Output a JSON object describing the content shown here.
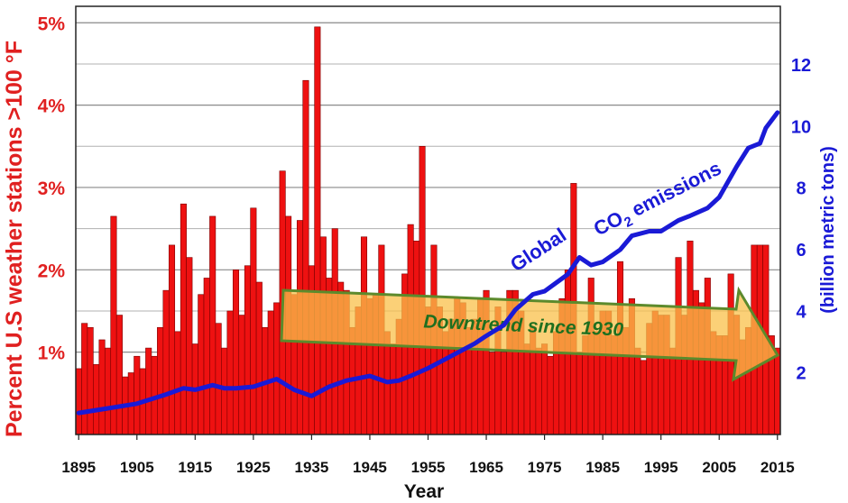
{
  "chart_data": {
    "type": "bar",
    "title": "",
    "xlabel": "Year",
    "ylabel_left": "Percent U.S weather stations >100 °F",
    "ylabel_right": "(billion metric tons)",
    "x_ticks": [
      "1895",
      "1905",
      "1915",
      "1925",
      "1935",
      "1945",
      "1955",
      "1965",
      "1975",
      "1985",
      "1995",
      "2005",
      "2015"
    ],
    "y_left_ticks": [
      "1%",
      "2%",
      "3%",
      "4%",
      "5%"
    ],
    "y_right_ticks": [
      "2",
      "4",
      "6",
      "8",
      "10",
      "12"
    ],
    "xlim": [
      1894.5,
      2015.5
    ],
    "ylim_left": [
      0,
      5.2
    ],
    "ylim_right": [
      0,
      13.9
    ],
    "grid": "horizontal",
    "colors": {
      "bars": "#ee1111",
      "bar_edge": "#7a0000",
      "co2_line": "#1a1ad6",
      "arrow_fill": "#f9c04a",
      "arrow_edge": "#5c8a2c",
      "arrow_text": "#1f6f1f"
    },
    "series": [
      {
        "name": "Percent U.S weather stations >100 °F",
        "axis": "left",
        "x": [
          1895,
          1896,
          1897,
          1898,
          1899,
          1900,
          1901,
          1902,
          1903,
          1904,
          1905,
          1906,
          1907,
          1908,
          1909,
          1910,
          1911,
          1912,
          1913,
          1914,
          1915,
          1916,
          1917,
          1918,
          1919,
          1920,
          1921,
          1922,
          1923,
          1924,
          1925,
          1926,
          1927,
          1928,
          1929,
          1930,
          1931,
          1932,
          1933,
          1934,
          1935,
          1936,
          1937,
          1938,
          1939,
          1940,
          1941,
          1942,
          1943,
          1944,
          1945,
          1946,
          1947,
          1948,
          1949,
          1950,
          1951,
          1952,
          1953,
          1954,
          1955,
          1956,
          1957,
          1958,
          1959,
          1960,
          1961,
          1962,
          1963,
          1964,
          1965,
          1966,
          1967,
          1968,
          1969,
          1970,
          1971,
          1972,
          1973,
          1974,
          1975,
          1976,
          1977,
          1978,
          1979,
          1980,
          1981,
          1982,
          1983,
          1984,
          1985,
          1986,
          1987,
          1988,
          1989,
          1990,
          1991,
          1992,
          1993,
          1994,
          1995,
          1996,
          1997,
          1998,
          1999,
          2000,
          2001,
          2002,
          2003,
          2004,
          2005,
          2006,
          2007,
          2008,
          2009,
          2010,
          2011,
          2012,
          2013,
          2014,
          2015
        ],
        "values": [
          0.8,
          1.35,
          1.3,
          0.85,
          1.15,
          1.05,
          2.65,
          1.45,
          0.7,
          0.75,
          0.95,
          0.8,
          1.05,
          0.95,
          1.3,
          1.75,
          2.3,
          1.25,
          2.8,
          2.15,
          1.1,
          1.7,
          1.9,
          2.65,
          1.35,
          1.05,
          1.5,
          2.0,
          1.45,
          2.05,
          2.75,
          1.85,
          1.3,
          1.5,
          1.6,
          3.2,
          2.65,
          1.7,
          2.6,
          4.3,
          2.05,
          4.95,
          2.4,
          1.9,
          2.5,
          1.85,
          1.75,
          1.3,
          1.55,
          2.4,
          1.65,
          1.7,
          2.3,
          1.25,
          1.1,
          1.4,
          1.95,
          2.55,
          2.35,
          3.5,
          1.55,
          2.3,
          1.55,
          1.25,
          1.4,
          1.65,
          1.6,
          1.3,
          1.4,
          1.65,
          1.75,
          1.0,
          1.55,
          1.0,
          1.75,
          1.75,
          1.5,
          1.1,
          1.3,
          1.05,
          1.1,
          0.95,
          1.25,
          1.65,
          2.0,
          3.05,
          1.0,
          1.2,
          1.9,
          1.25,
          1.5,
          1.5,
          1.2,
          2.1,
          1.3,
          1.65,
          1.05,
          0.9,
          1.35,
          1.5,
          1.45,
          1.45,
          1.05,
          2.15,
          1.45,
          2.35,
          1.75,
          1.6,
          1.9,
          1.25,
          1.2,
          1.2,
          1.95,
          1.45,
          1.15,
          1.3,
          2.3,
          2.3,
          2.3,
          1.2,
          1.05
        ]
      },
      {
        "name": "Global CO2 emissions",
        "axis": "right",
        "x": [
          1895,
          1900,
          1905,
          1910,
          1913,
          1915,
          1918,
          1920,
          1922,
          1925,
          1929,
          1932,
          1935,
          1938,
          1941,
          1945,
          1948,
          1950,
          1952,
          1955,
          1958,
          1960,
          1963,
          1965,
          1968,
          1970,
          1973,
          1975,
          1979,
          1981,
          1983,
          1985,
          1988,
          1990,
          1993,
          1995,
          1998,
          2000,
          2003,
          2005,
          2008,
          2010,
          2012,
          2013,
          2015
        ],
        "values": [
          0.7,
          0.85,
          1.0,
          1.3,
          1.5,
          1.45,
          1.6,
          1.5,
          1.5,
          1.55,
          1.8,
          1.45,
          1.25,
          1.55,
          1.75,
          1.9,
          1.7,
          1.75,
          1.9,
          2.15,
          2.45,
          2.65,
          2.95,
          3.2,
          3.55,
          4.05,
          4.55,
          4.65,
          5.2,
          5.75,
          5.5,
          5.6,
          6.0,
          6.45,
          6.6,
          6.6,
          6.95,
          7.1,
          7.35,
          7.7,
          8.7,
          9.3,
          9.45,
          9.95,
          10.45
        ]
      }
    ],
    "annotations": {
      "co2_label_1": "Global",
      "co2_label_2a": "CO",
      "co2_label_2sub": "2",
      "co2_label_2b": " emissions",
      "trend_arrow": "Downtrend since 1930"
    }
  }
}
